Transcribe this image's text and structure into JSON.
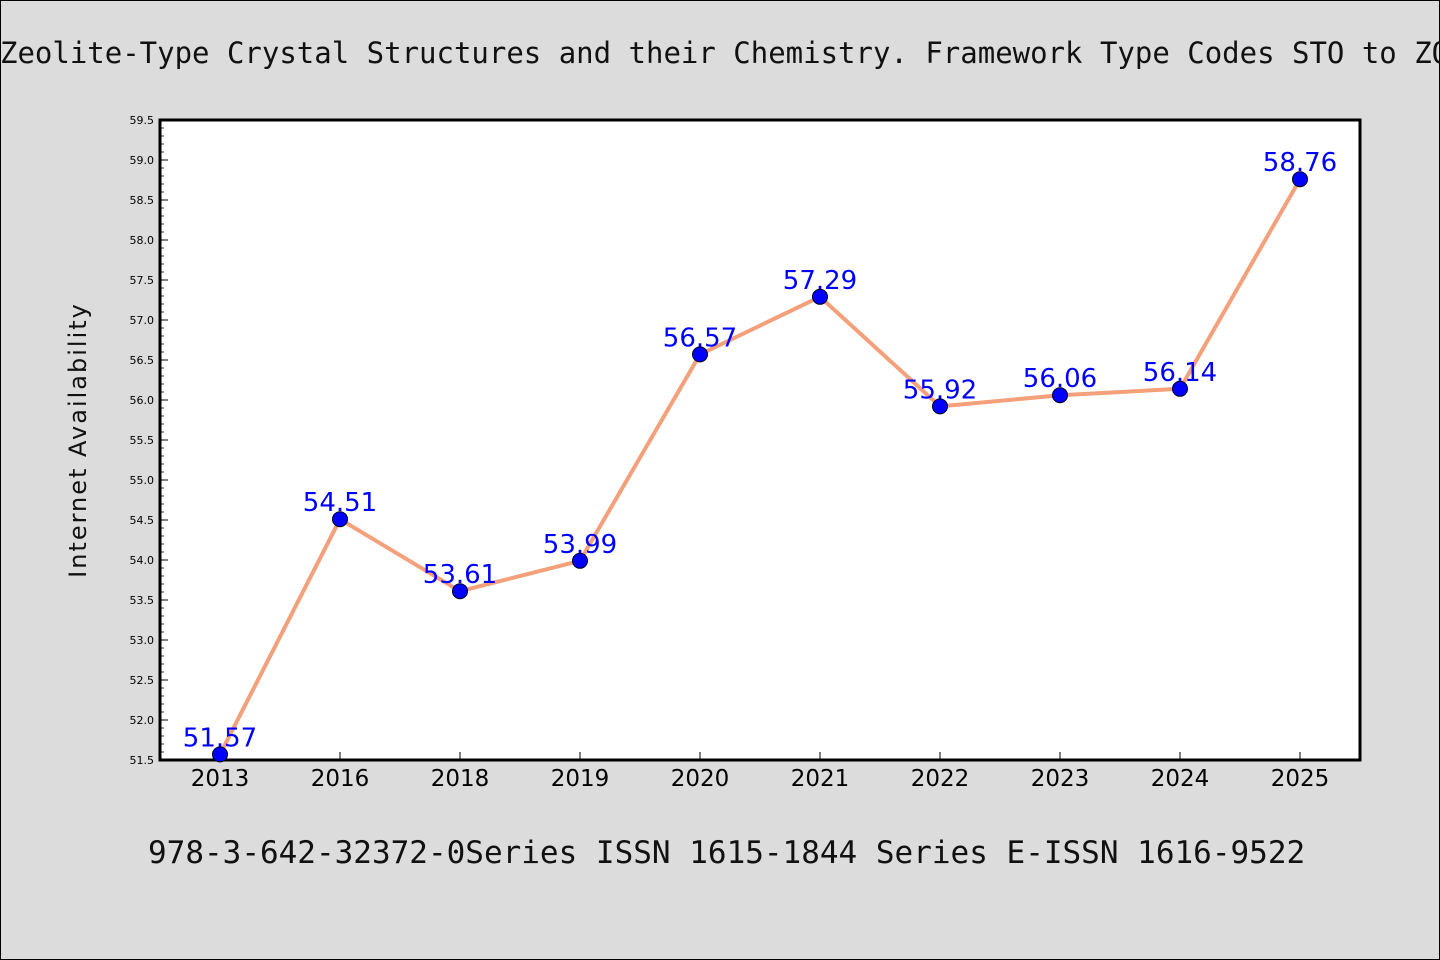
{
  "title": "Zeolite-Type Crystal Structures and their Chemistry. Framework Type Codes STO to ZON",
  "footer": "978-3-642-32372-0Series ISSN 1615-1844 Series E-ISSN 1616-9522",
  "colors": {
    "background": "#dcdcdc",
    "plot_background": "#ffffff",
    "line": "#f4a07a",
    "marker": "#0000ff",
    "data_label": "#0000ff"
  },
  "chart_data": {
    "type": "line",
    "title": "Zeolite-Type Crystal Structures and their Chemistry. Framework Type Codes STO to ZON",
    "xlabel": "",
    "ylabel": "Internet Availability",
    "categories": [
      "2013",
      "2016",
      "2018",
      "2019",
      "2020",
      "2021",
      "2022",
      "2023",
      "2024",
      "2025"
    ],
    "values": [
      51.57,
      54.51,
      53.61,
      53.99,
      56.57,
      57.29,
      55.92,
      56.06,
      56.14,
      58.76
    ],
    "data_labels": [
      "51.57",
      "54.51",
      "53.61",
      "53.99",
      "56.57",
      "57.29",
      "55.92",
      "56.06",
      "56.14",
      "58.76"
    ],
    "ylim": [
      51.5,
      59.5
    ],
    "y_ticks": [
      "51.5",
      "52.0",
      "52.5",
      "53.0",
      "53.5",
      "54.0",
      "54.5",
      "55.0",
      "55.5",
      "56.0",
      "56.5",
      "57.0",
      "57.5",
      "58.0",
      "58.5",
      "59.0",
      "59.5"
    ],
    "grid": false,
    "legend": "none"
  }
}
